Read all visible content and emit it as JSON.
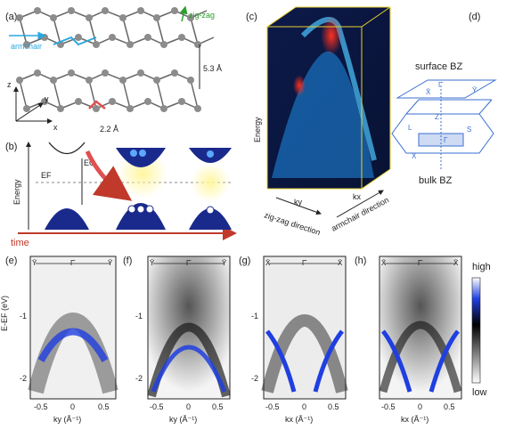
{
  "panels": {
    "a": {
      "label": "(a)",
      "armchair": "armchair",
      "zigzag": "zig-zag",
      "height": "5.3 Å",
      "bond": "2.2 Å",
      "axis_z": "z",
      "axis_y": "y",
      "axis_x": "x",
      "colors": {
        "atom": "#8c8c8c",
        "armchair": "#29a8e0",
        "zigzag": "#2ca02c",
        "bond_highlight": "#e05050"
      }
    },
    "b": {
      "label": "(b)",
      "ef": "EF",
      "eg": "EG",
      "energy": "Energy",
      "time": "time",
      "colors": {
        "band": "#1a2a8c",
        "arrow": "#c0392b",
        "glow": "#f5e24a"
      }
    },
    "c": {
      "label": "(c)",
      "energy": "Energy",
      "ky": "ky",
      "kx": "kx",
      "zigzag_direction": "zig-zag direction",
      "armchair_direction": "armchair direction"
    },
    "d": {
      "label": "(d)",
      "surface_bz": "surface BZ",
      "bulk_bz": "bulk BZ",
      "points": {
        "xbar": "X̄",
        "gbar": "Γ̄",
        "ybar": "Ȳ",
        "z": "Z",
        "l": "L",
        "g": "Γ",
        "s": "S",
        "x": "X"
      },
      "colors": {
        "bz": "#3a6fd0"
      }
    },
    "e": {
      "label": "(e)",
      "hs_left": "Ȳ",
      "hs_mid": "Γ̄",
      "hs_right": "Ȳ",
      "xlabel": "ky (Å⁻¹)"
    },
    "f": {
      "label": "(f)",
      "hs_left": "Ȳ",
      "hs_mid": "Γ̄",
      "hs_right": "Ȳ",
      "xlabel": "ky (Å⁻¹)"
    },
    "g": {
      "label": "(g)",
      "hs_left": "X̄",
      "hs_mid": "Γ̄",
      "hs_right": "X̄",
      "xlabel": "kx (Å⁻¹)"
    },
    "h": {
      "label": "(h)",
      "hs_left": "X̄",
      "hs_mid": "Γ̄",
      "hs_right": "X̄",
      "xlabel": "kx (Å⁻¹)"
    }
  },
  "arpes_axes": {
    "ylabel": "E-EF (eV)",
    "yticks": [
      "-1",
      "-2"
    ],
    "xticks": [
      "-0.5",
      "0",
      "0.5"
    ]
  },
  "colorbar": {
    "high": "high",
    "low": "low",
    "colors": [
      "#ffffff",
      "#000000",
      "#1f3fe0",
      "#ffffff"
    ]
  }
}
